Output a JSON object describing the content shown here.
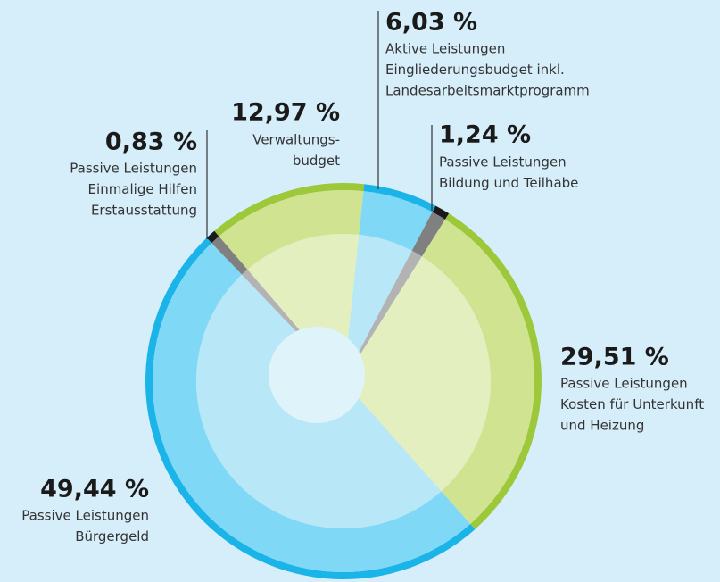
{
  "chart_data": {
    "type": "pie",
    "categories": [
      [
        "Aktive Leistungen",
        "Eingliederungsbudget inkl.",
        "Landesarbeitsmarktprogramm"
      ],
      [
        "Passive Leistungen",
        "Bildung und Teilhabe"
      ],
      [
        "Passive Leistungen",
        "Kosten für Unterkunft",
        "und Heizung"
      ],
      [
        "Passive Leistungen",
        "Bürgergeld"
      ],
      [
        "Passive Leistungen",
        "Einmalige Hilfen",
        "Erstausstattung"
      ],
      [
        "Verwaltungs-",
        "budget"
      ]
    ],
    "values": [
      6.03,
      1.24,
      29.51,
      49.44,
      0.83,
      12.97
    ],
    "value_labels": [
      "6,03 %",
      "1,24 %",
      "29,51 %",
      "49,44 %",
      "0,83 %",
      "12,97 %"
    ],
    "colors": [
      [
        "#1ab4e8",
        "#7fd8f5",
        "#b8e8f8"
      ],
      [
        "#1a1a1a",
        "#808080",
        "#b3b3b3"
      ],
      [
        "#9cc83a",
        "#cfe390",
        "#e3efbe"
      ],
      [
        "#1ab4e8",
        "#7fd8f5",
        "#b8e8f8"
      ],
      [
        "#1a1a1a",
        "#808080",
        "#b3b3b3"
      ],
      [
        "#9cc83a",
        "#cfe390",
        "#e3efbe"
      ]
    ]
  }
}
